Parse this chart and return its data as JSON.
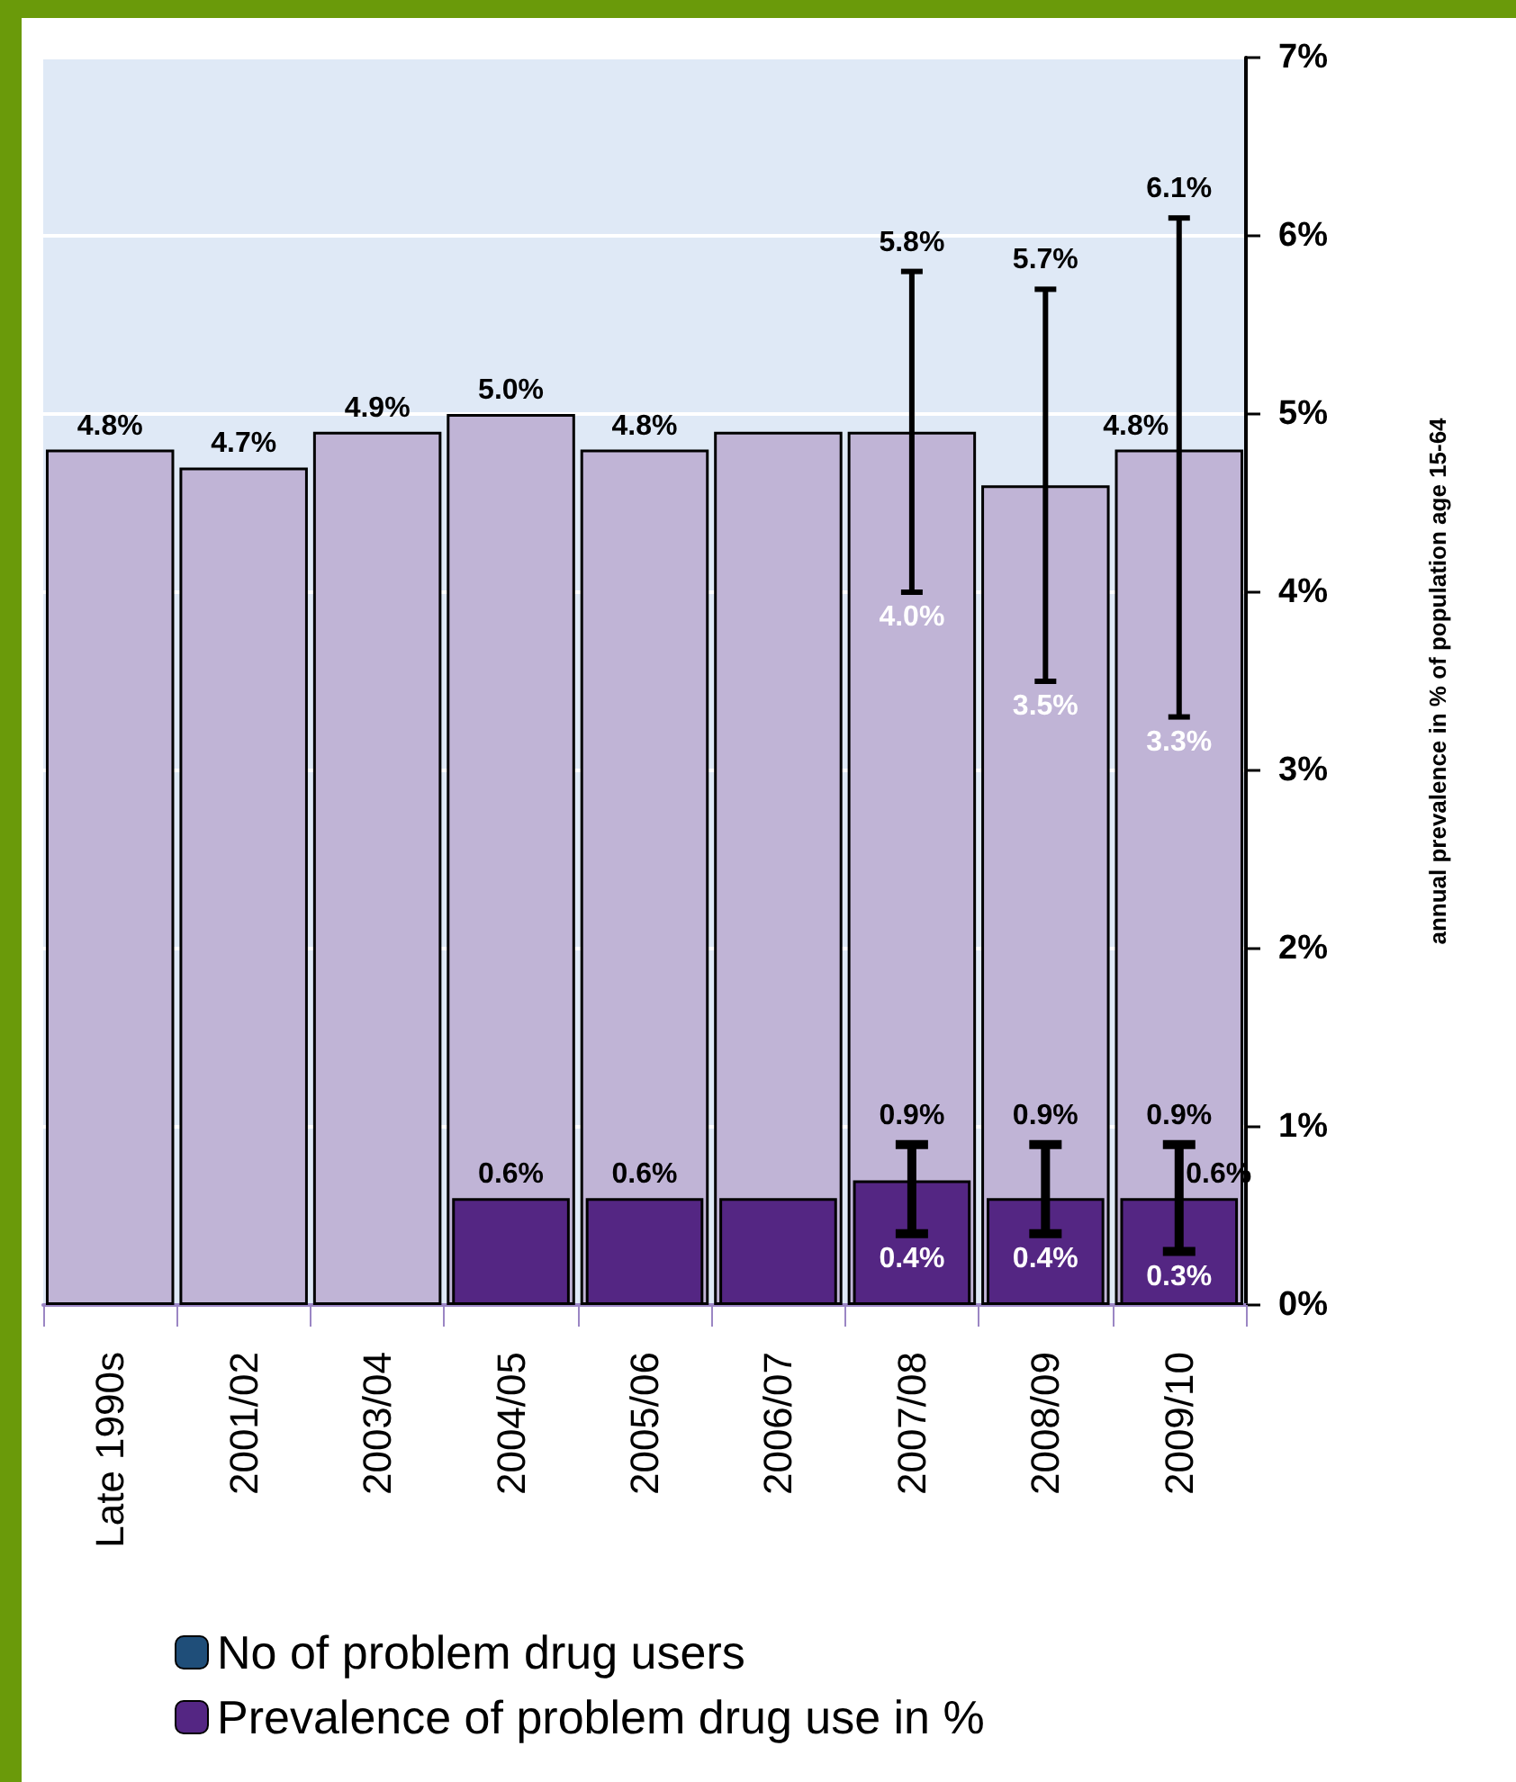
{
  "chart_data": {
    "type": "bar",
    "categories": [
      "Late 1990s",
      "2001/02",
      "2003/04",
      "2004/05",
      "2005/06",
      "2006/07",
      "2007/08",
      "2008/09",
      "2009/10"
    ],
    "series": [
      {
        "color": "#c0b4d6",
        "values": [
          4.8,
          4.7,
          4.9,
          5.0,
          4.8,
          4.9,
          4.9,
          4.6,
          4.8
        ],
        "value_labels": [
          "4.8%",
          "4.7%",
          "4.9%",
          "5.0%",
          "4.8%",
          null,
          null,
          null,
          "4.8%"
        ],
        "errors": [
          null,
          null,
          null,
          null,
          null,
          null,
          [
            4.0,
            5.8
          ],
          [
            3.5,
            5.7
          ],
          [
            3.3,
            6.1
          ]
        ]
      },
      {
        "name": "No of problem drug users",
        "color": "#1f4e79",
        "values": [
          null,
          null,
          null,
          null,
          null,
          null,
          null,
          null,
          null
        ]
      },
      {
        "name": "Prevalence of problem drug use in %",
        "color": "#542683",
        "values": [
          null,
          null,
          null,
          0.6,
          0.6,
          0.6,
          0.7,
          0.6,
          0.6
        ],
        "value_labels": [
          null,
          null,
          null,
          "0.6%",
          "0.6%",
          null,
          null,
          null,
          "0.6%"
        ],
        "errors": [
          null,
          null,
          null,
          null,
          null,
          null,
          [
            0.4,
            0.9
          ],
          [
            0.4,
            0.9
          ],
          [
            0.3,
            0.9
          ]
        ]
      }
    ],
    "annotations": [
      {
        "text": "5.8%",
        "x": "2007/08",
        "y": 5.8
      },
      {
        "text": "4.0%",
        "x": "2007/08",
        "y": 4.0
      },
      {
        "text": "5.7%",
        "x": "2008/09",
        "y": 5.7
      },
      {
        "text": "3.5%",
        "x": "2008/09",
        "y": 3.5
      },
      {
        "text": "6.1%",
        "x": "2009/10",
        "y": 6.1
      },
      {
        "text": "3.3%",
        "x": "2009/10",
        "y": 3.3
      },
      {
        "text": "0.9%",
        "x": "2007/08",
        "y": 0.9
      },
      {
        "text": "0.4%",
        "x": "2007/08",
        "y": 0.4
      },
      {
        "text": "0.9%",
        "x": "2008/09",
        "y": 0.9
      },
      {
        "text": "0.4%",
        "x": "2008/09",
        "y": 0.4
      },
      {
        "text": "0.9%",
        "x": "2009/10",
        "y": 0.9
      },
      {
        "text": "0.3%",
        "x": "2009/10",
        "y": 0.3
      }
    ],
    "ylabel": "annual prevalence in % of population age 15-64",
    "ylim": [
      0,
      7
    ],
    "yticks": [
      {
        "value": 0,
        "label": "0%"
      },
      {
        "value": 1,
        "label": "1%"
      },
      {
        "value": 2,
        "label": "2%"
      },
      {
        "value": 3,
        "label": "3%"
      },
      {
        "value": 4,
        "label": "4%"
      },
      {
        "value": 5,
        "label": "5%"
      },
      {
        "value": 6,
        "label": "6%"
      },
      {
        "value": 7,
        "label": "7%"
      }
    ],
    "grid": "y",
    "legend": "bottom"
  }
}
